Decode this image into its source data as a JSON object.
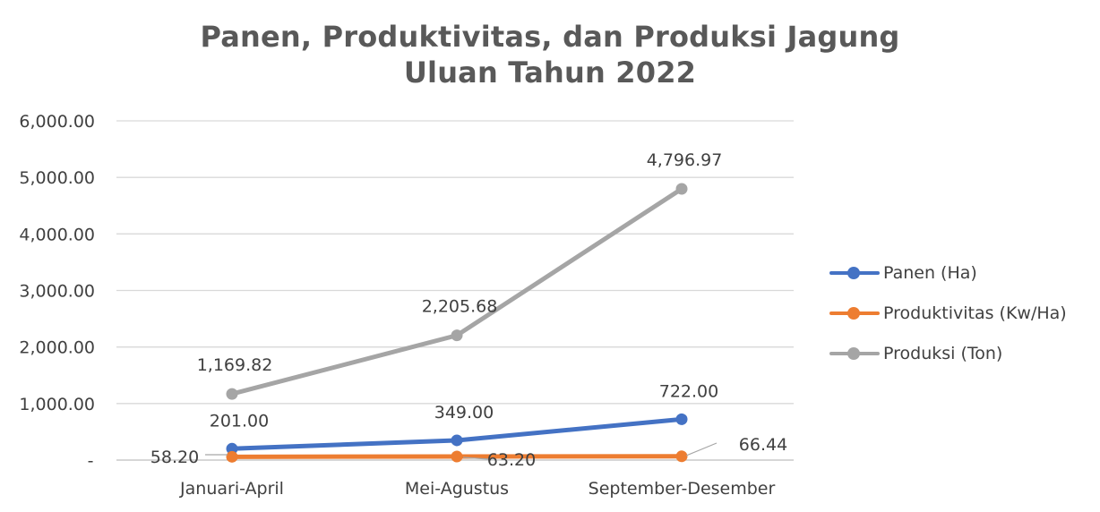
{
  "chart_data": {
    "type": "line",
    "title": "Panen, Produktivitas, dan Produksi Jagung",
    "subtitle": "Uluan Tahun 2022",
    "categories": [
      "Januari-April",
      "Mei-Agustus",
      "September-Desember"
    ],
    "y_ticks": [
      "-",
      "1,000.00",
      "2,000.00",
      "3,000.00",
      "4,000.00",
      "5,000.00",
      "6,000.00"
    ],
    "ylim": [
      0,
      6000
    ],
    "grid": true,
    "legend_position": "right",
    "series": [
      {
        "name": "Panen (Ha)",
        "color": "#4472C4",
        "values": [
          201.0,
          349.0,
          722.0
        ],
        "labels": [
          "201.00",
          "349.00",
          "722.00"
        ]
      },
      {
        "name": "Produktivitas (Kw/Ha)",
        "color": "#ED7D31",
        "values": [
          58.2,
          63.2,
          66.44
        ],
        "labels": [
          "58.20",
          "63.20",
          "66.44"
        ]
      },
      {
        "name": "Produksi (Ton)",
        "color": "#A5A5A5",
        "values": [
          1169.82,
          2205.68,
          4796.97
        ],
        "labels": [
          "1,169.82",
          "2,205.68",
          "4,796.97"
        ]
      }
    ]
  }
}
